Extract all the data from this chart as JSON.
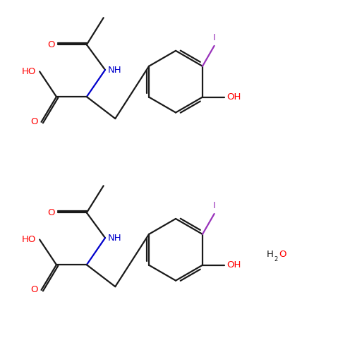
{
  "bg": "#ffffff",
  "bc": "#1a1a1a",
  "oc": "#ff0000",
  "nc": "#0000cc",
  "ic": "#9933bb",
  "lw": 1.6,
  "fs": 9.5,
  "fs_sub": 6.0,
  "xlim": [
    0,
    10
  ],
  "ylim": [
    0,
    10
  ],
  "mol1_oy": 5.15,
  "mol2_oy": 0.2,
  "sc": 1.0
}
